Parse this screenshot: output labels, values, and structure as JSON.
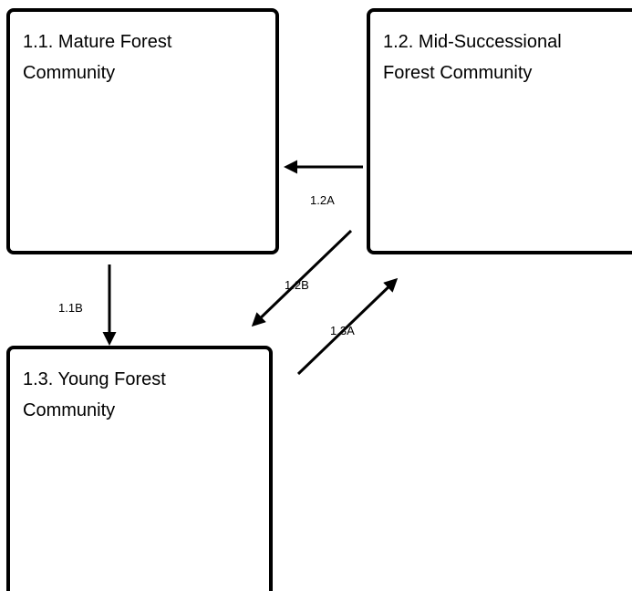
{
  "nodes": [
    {
      "label": [
        "1.1. Mature Forest",
        "Community"
      ]
    },
    {
      "label": [
        "1.2. Mid-Successional",
        "Forest Community"
      ]
    },
    {
      "label": [
        "1.3. Young Forest",
        "Community"
      ]
    }
  ],
  "edges": [
    {
      "label": "1.2A"
    },
    {
      "label": "1.2B"
    },
    {
      "label": "1.3A"
    },
    {
      "label": "1.1B"
    }
  ]
}
